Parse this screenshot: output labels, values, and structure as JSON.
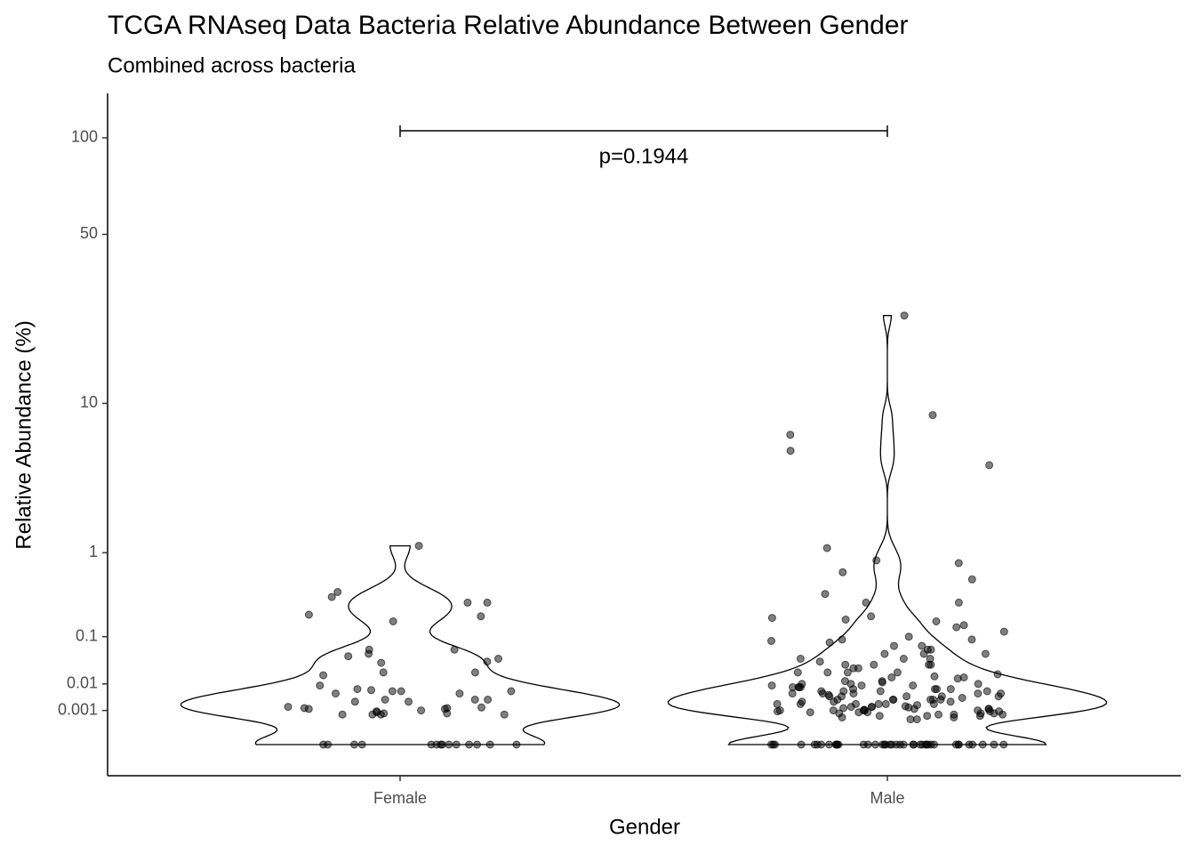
{
  "chart_data": {
    "type": "violin",
    "title": "TCGA RNAseq Data Bacteria Relative Abundance Between Gender",
    "subtitle": "Combined across bacteria",
    "x_label": "Gender",
    "y_label": "Relative Abundance (%)",
    "y_scale": "fourth_root",
    "ylim": [
      0,
      130
    ],
    "yticks": [
      0.001,
      0.01,
      0.1,
      1,
      10,
      50,
      100
    ],
    "categories": [
      "Female",
      "Male"
    ],
    "point_color": "#000000",
    "annotation": "p=0.1944",
    "values": [
      [
        0,
        0,
        0,
        0,
        0,
        0,
        0,
        0,
        0,
        0,
        0,
        0,
        0,
        0,
        1.15,
        0.4,
        0.35,
        0.3,
        0.3,
        0.2,
        0.21,
        0.17,
        0.06,
        0.05,
        0.045,
        0.06,
        0.04,
        0.035,
        0.033,
        0.02,
        0.02,
        0.017,
        0.009,
        0.007,
        0.0065,
        0.006,
        0.006,
        0.006,
        0.005,
        0.005,
        0.003,
        0.003,
        0.003,
        0.0025,
        0.0025,
        0.0014,
        0.0013,
        0.0012,
        0.001,
        0.0013,
        0.0012,
        0.0009,
        0.0007,
        0.0006,
        0.0006,
        0.0008,
        0.0006,
        0.0006,
        0.0007,
        0.0015
      ],
      [
        0,
        0,
        0,
        0,
        0,
        0,
        0,
        0,
        0,
        0,
        0,
        0,
        0,
        0,
        0,
        0,
        0,
        0,
        0,
        0,
        0,
        0,
        0,
        0,
        0,
        0,
        0,
        0,
        0,
        0,
        0,
        0,
        0,
        0,
        0,
        0,
        0,
        0,
        0,
        0,
        25,
        8.7,
        6.8,
        4.5,
        5.5,
        1.1,
        0.85,
        0.8,
        0.65,
        0.55,
        0.38,
        0.3,
        0.3,
        0.2,
        0.19,
        0.18,
        0.17,
        0.15,
        0.14,
        0.12,
        0.1,
        0.09,
        0.09,
        0.085,
        0.08,
        0.07,
        0.07,
        0.06,
        0.06,
        0.05,
        0.05,
        0.05,
        0.04,
        0.04,
        0.04,
        0.035,
        0.03,
        0.03,
        0.03,
        0.03,
        0.025,
        0.025,
        0.02,
        0.02,
        0.02,
        0.02,
        0.018,
        0.016,
        0.015,
        0.015,
        0.014,
        0.012,
        0.012,
        0.011,
        0.01,
        0.01,
        0.01,
        0.009,
        0.009,
        0.009,
        0.008,
        0.008,
        0.008,
        0.008,
        0.007,
        0.007,
        0.007,
        0.007,
        0.006,
        0.006,
        0.006,
        0.006,
        0.005,
        0.005,
        0.005,
        0.005,
        0.005,
        0.0045,
        0.004,
        0.004,
        0.004,
        0.004,
        0.004,
        0.0035,
        0.003,
        0.003,
        0.003,
        0.003,
        0.003,
        0.003,
        0.0025,
        0.0025,
        0.0025,
        0.002,
        0.002,
        0.002,
        0.002,
        0.002,
        0.002,
        0.0018,
        0.0016,
        0.0015,
        0.0015,
        0.0015,
        0.0014,
        0.0013,
        0.0012,
        0.0012,
        0.0012,
        0.0011,
        0.001,
        0.001,
        0.001,
        0.001,
        0.001,
        0.0009,
        0.0009,
        0.0009,
        0.0008,
        0.0008,
        0.0008,
        0.0007,
        0.0007,
        0.0007,
        0.0006,
        0.0006,
        0.0006,
        0.0005,
        0.0005,
        0.0005,
        0.0004,
        0.0004,
        0.0003,
        0.0003
      ]
    ]
  }
}
